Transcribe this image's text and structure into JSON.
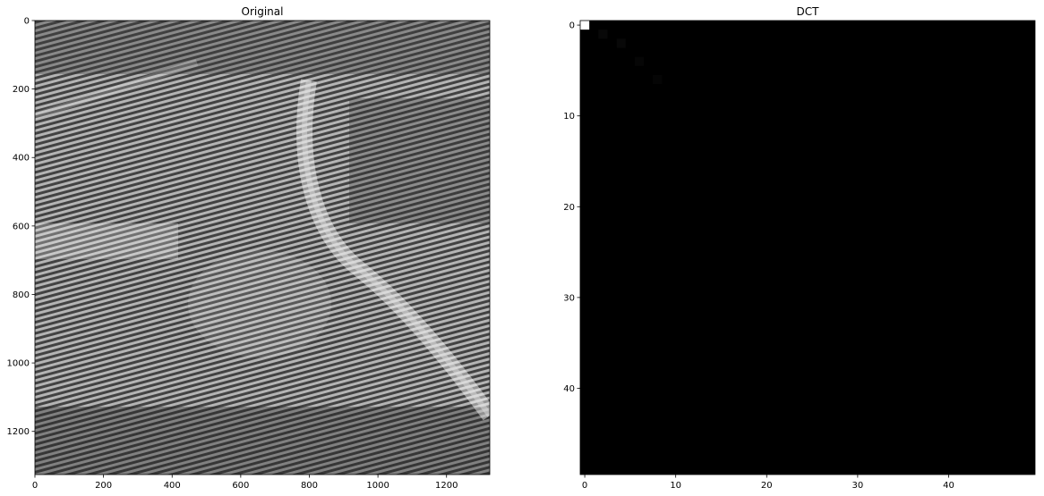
{
  "chart_data": [
    {
      "type": "heatmap",
      "title": "Original",
      "xlabel": "",
      "ylabel": "",
      "xlim": [
        0,
        1326
      ],
      "ylim": [
        1326,
        0
      ],
      "colormap": "gray",
      "xticks": [
        0,
        200,
        400,
        600,
        800,
        1000,
        1200
      ],
      "yticks": [
        0,
        200,
        400,
        600,
        800,
        1000,
        1200
      ],
      "xtick_labels": [
        "0",
        "200",
        "400",
        "600",
        "800",
        "1000",
        "1200"
      ],
      "ytick_labels": [
        "0",
        "200",
        "400",
        "600",
        "800",
        "1000",
        "1200"
      ],
      "content": "grayscale aerial photograph (road curving from top center toward bottom right, buildings and vegetation) overlaid with fine diagonal stripe pattern"
    },
    {
      "type": "heatmap",
      "title": "DCT",
      "xlabel": "",
      "ylabel": "",
      "xlim": [
        -0.5,
        49.5
      ],
      "ylim": [
        49.5,
        -0.5
      ],
      "colormap": "gray",
      "xticks": [
        0,
        10,
        20,
        30,
        40
      ],
      "yticks": [
        0,
        10,
        20,
        30,
        40
      ],
      "xtick_labels": [
        "0",
        "10",
        "20",
        "30",
        "40"
      ],
      "ytick_labels": [
        "0",
        "10",
        "20",
        "30",
        "40"
      ],
      "bright_cells": [
        {
          "row": 0,
          "col": 0,
          "value": 1.0
        }
      ],
      "faint_cells": [
        {
          "row": 1,
          "col": 2,
          "value": 0.03
        },
        {
          "row": 2,
          "col": 4,
          "value": 0.03
        },
        {
          "row": 4,
          "col": 6,
          "value": 0.025
        },
        {
          "row": 6,
          "col": 8,
          "value": 0.02
        }
      ],
      "background_value": 0.0
    }
  ]
}
